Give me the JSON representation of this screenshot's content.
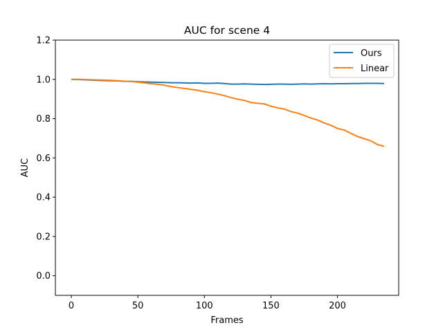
{
  "chart_data": {
    "type": "line",
    "title": "AUC for scene 4",
    "xlabel": "Frames",
    "ylabel": "AUC",
    "xlim": [
      -12,
      246
    ],
    "ylim": [
      -0.1,
      1.2
    ],
    "xticks": [
      0,
      50,
      100,
      150,
      200
    ],
    "yticks": [
      0.0,
      0.2,
      0.4,
      0.6,
      0.8,
      1.0,
      1.2
    ],
    "xtick_labels": [
      "0",
      "50",
      "100",
      "150",
      "200"
    ],
    "ytick_labels": [
      "0.0",
      "0.2",
      "0.4",
      "0.6",
      "0.8",
      "1.0",
      "1.2"
    ],
    "grid": false,
    "legend_position": "top-right",
    "x": [
      0,
      5,
      10,
      15,
      20,
      25,
      30,
      35,
      40,
      45,
      50,
      55,
      60,
      65,
      70,
      75,
      80,
      85,
      90,
      95,
      100,
      105,
      110,
      115,
      120,
      125,
      130,
      135,
      140,
      145,
      150,
      155,
      160,
      165,
      170,
      175,
      180,
      185,
      190,
      195,
      200,
      205,
      210,
      215,
      220,
      225,
      230,
      235
    ],
    "series": [
      {
        "name": "Ours",
        "color": "#1f77b4",
        "values": [
          1.0,
          0.999,
          0.998,
          0.996,
          0.995,
          0.994,
          0.993,
          0.992,
          0.99,
          0.99,
          0.988,
          0.987,
          0.986,
          0.985,
          0.984,
          0.983,
          0.983,
          0.982,
          0.981,
          0.982,
          0.98,
          0.98,
          0.981,
          0.979,
          0.976,
          0.976,
          0.977,
          0.976,
          0.975,
          0.974,
          0.975,
          0.976,
          0.976,
          0.975,
          0.976,
          0.977,
          0.976,
          0.977,
          0.978,
          0.977,
          0.978,
          0.978,
          0.979,
          0.979,
          0.98,
          0.98,
          0.98,
          0.979
        ]
      },
      {
        "name": "Linear",
        "color": "#ff7f0e",
        "values": [
          1.0,
          1.0,
          0.999,
          0.998,
          0.997,
          0.996,
          0.995,
          0.993,
          0.991,
          0.989,
          0.986,
          0.982,
          0.978,
          0.975,
          0.97,
          0.963,
          0.958,
          0.954,
          0.949,
          0.944,
          0.937,
          0.932,
          0.925,
          0.917,
          0.907,
          0.899,
          0.893,
          0.882,
          0.878,
          0.875,
          0.863,
          0.855,
          0.849,
          0.836,
          0.828,
          0.816,
          0.803,
          0.793,
          0.778,
          0.766,
          0.75,
          0.742,
          0.725,
          0.709,
          0.698,
          0.687,
          0.668,
          0.659
        ]
      }
    ]
  }
}
